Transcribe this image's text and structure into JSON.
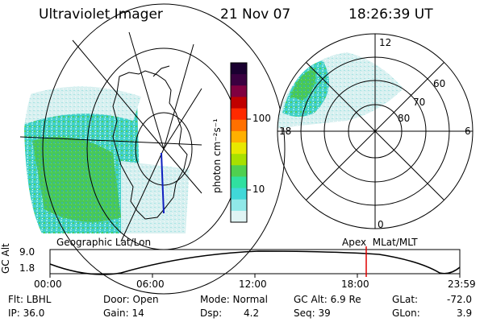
{
  "header": {
    "instrument": "Ultraviolet Imager",
    "date": "21 Nov 07",
    "time": "18:26:39 UT"
  },
  "colorbar": {
    "unit": "photon cm⁻²s⁻¹",
    "ticks": [
      "100",
      "10"
    ],
    "colors": [
      "#1a0030",
      "#3a0040",
      "#800040",
      "#c00000",
      "#ff2a00",
      "#ff7000",
      "#ffb000",
      "#e8e800",
      "#a8e000",
      "#50d050",
      "#30e0a0",
      "#40d8d8",
      "#90e8e8",
      "#e0f4f4"
    ]
  },
  "left_map": {
    "caption": "Geographic Lat/Lon"
  },
  "right_map": {
    "caption": "Apex  MLat/MLT",
    "mlt_labels": {
      "top": "12",
      "left": "18",
      "right": "6",
      "bottom": "0"
    },
    "lat_labels": [
      "60",
      "70",
      "80"
    ]
  },
  "timeline": {
    "ylabel": "GC Alt",
    "y_ticks": [
      "9.0",
      "1.8"
    ],
    "x_ticks": [
      "00:00",
      "06:00",
      "12:00",
      "18:00",
      "23:59"
    ],
    "marker_time": "18:26",
    "marker_color": "#e00000"
  },
  "status": {
    "filter": "Flt: LBHL",
    "ip": "IP: 36.0",
    "door": "Door: Open",
    "gain": "Gain: 14",
    "mode": "Mode: Normal",
    "dsp_label": "Dsp:",
    "dsp_value": "4.2",
    "gc_alt": "GC Alt: 6.9 Re",
    "seq": "Seq: 39",
    "glat_label": "GLat:",
    "glat_value": "-72.0",
    "glon_label": "GLon:",
    "glon_value": "3.9"
  }
}
